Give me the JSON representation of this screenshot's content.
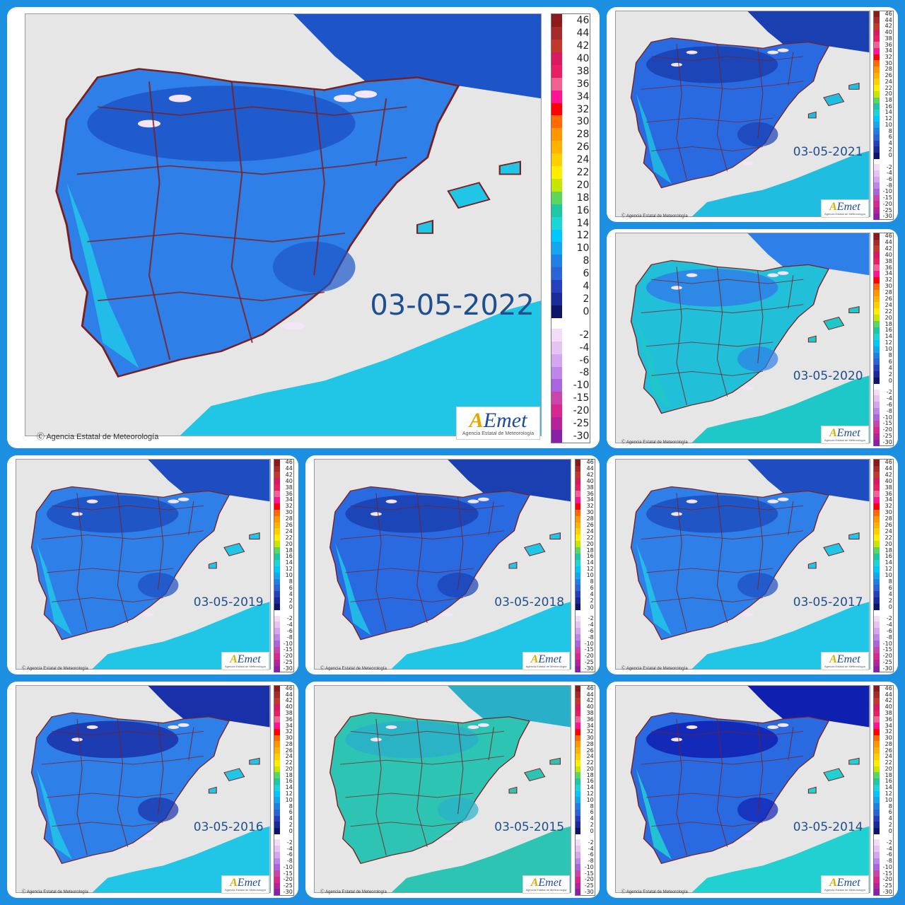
{
  "background_color": "#1c8fe0",
  "legend": {
    "values": [
      "46",
      "44",
      "42",
      "40",
      "38",
      "36",
      "34",
      "32",
      "30",
      "28",
      "26",
      "24",
      "22",
      "20",
      "18",
      "16",
      "14",
      "12",
      "10",
      "8",
      "6",
      "4",
      "2",
      "0"
    ],
    "colors": [
      "#8b1a1a",
      "#a52a2a",
      "#c0392b",
      "#d81b60",
      "#e91e63",
      "#f06292",
      "#ff1493",
      "#ff0000",
      "#ff6a00",
      "#ff9800",
      "#ffb300",
      "#ffd000",
      "#ffee00",
      "#c6e600",
      "#5cd65c",
      "#1fc8a5",
      "#1ad6d6",
      "#00c8ff",
      "#14a6f0",
      "#1f7fe6",
      "#2b63d9",
      "#253fbf",
      "#1a2a99",
      "#0e1468"
    ],
    "negative_values": [
      "-2",
      "-4",
      "-6",
      "-8",
      "-10",
      "-15",
      "-20",
      "-25",
      "-30"
    ],
    "negative_colors": [
      "#f3dcf5",
      "#e5c4f2",
      "#d3a6ef",
      "#bd86e8",
      "#a964df",
      "#cc44aa",
      "#d8288f",
      "#b8219c",
      "#8a1fa8"
    ]
  },
  "credit": "Agencia Estatal de Meteorología",
  "logo": {
    "text_a": "A",
    "text_rest": "Emet",
    "subtitle": "Agencia Estatal de Meteorología"
  },
  "panels": [
    {
      "date": "03-05-2022",
      "land_color": "#2f7fe8",
      "cold_color": "#1d55c8",
      "sea_color": "#21c6e6"
    },
    {
      "date": "03-05-2021",
      "land_color": "#2a6ae0",
      "cold_color": "#1a3fb0",
      "sea_color": "#1fbde0"
    },
    {
      "date": "03-05-2020",
      "land_color": "#22bfd8",
      "cold_color": "#2f7fe8",
      "sea_color": "#1fc8c8"
    },
    {
      "date": "03-05-2019",
      "land_color": "#2f7fe8",
      "cold_color": "#1d4dc0",
      "sea_color": "#21c6e6"
    },
    {
      "date": "03-05-2018",
      "land_color": "#2a6ae0",
      "cold_color": "#1a3fb0",
      "sea_color": "#21c6e6"
    },
    {
      "date": "03-05-2017",
      "land_color": "#2f7fe8",
      "cold_color": "#1d4dc0",
      "sea_color": "#21c6e6"
    },
    {
      "date": "03-05-2016",
      "land_color": "#2f7fe8",
      "cold_color": "#1a30a8",
      "sea_color": "#21c6e6"
    },
    {
      "date": "03-05-2015",
      "land_color": "#2ec4b4",
      "cold_color": "#29b0c8",
      "sea_color": "#2ec4b4"
    },
    {
      "date": "03-05-2014",
      "land_color": "#2a6ae0",
      "cold_color": "#0f1fb0",
      "sea_color": "#21d0d0"
    }
  ]
}
